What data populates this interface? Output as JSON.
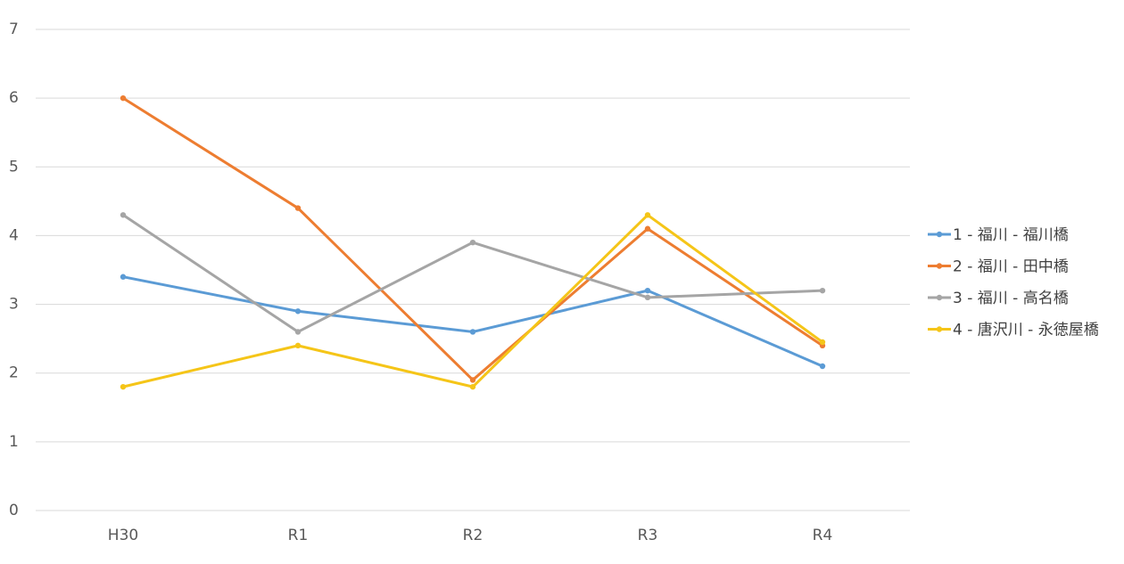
{
  "chart_data": {
    "type": "line",
    "title": "",
    "xlabel": "",
    "ylabel": "",
    "categories": [
      "H30",
      "R1",
      "R2",
      "R3",
      "R4"
    ],
    "ylim": [
      0,
      7
    ],
    "yticks": [
      0,
      1,
      2,
      3,
      4,
      5,
      6,
      7
    ],
    "grid": true,
    "legend_position": "right",
    "series": [
      {
        "name": "1 - 福川 - 福川橋",
        "color": "#5b9bd5",
        "values": [
          3.4,
          2.9,
          2.6,
          3.2,
          2.1
        ]
      },
      {
        "name": "2 - 福川 - 田中橋",
        "color": "#ed7d31",
        "values": [
          6.0,
          4.4,
          1.9,
          4.1,
          2.4
        ]
      },
      {
        "name": "3 - 福川 - 高名橋",
        "color": "#a5a5a5",
        "values": [
          4.3,
          2.6,
          3.9,
          3.1,
          3.2
        ]
      },
      {
        "name": "4 - 唐沢川 - 永徳屋橋",
        "color": "#f5c518",
        "values": [
          1.8,
          2.4,
          1.8,
          4.3,
          2.45
        ]
      }
    ]
  }
}
